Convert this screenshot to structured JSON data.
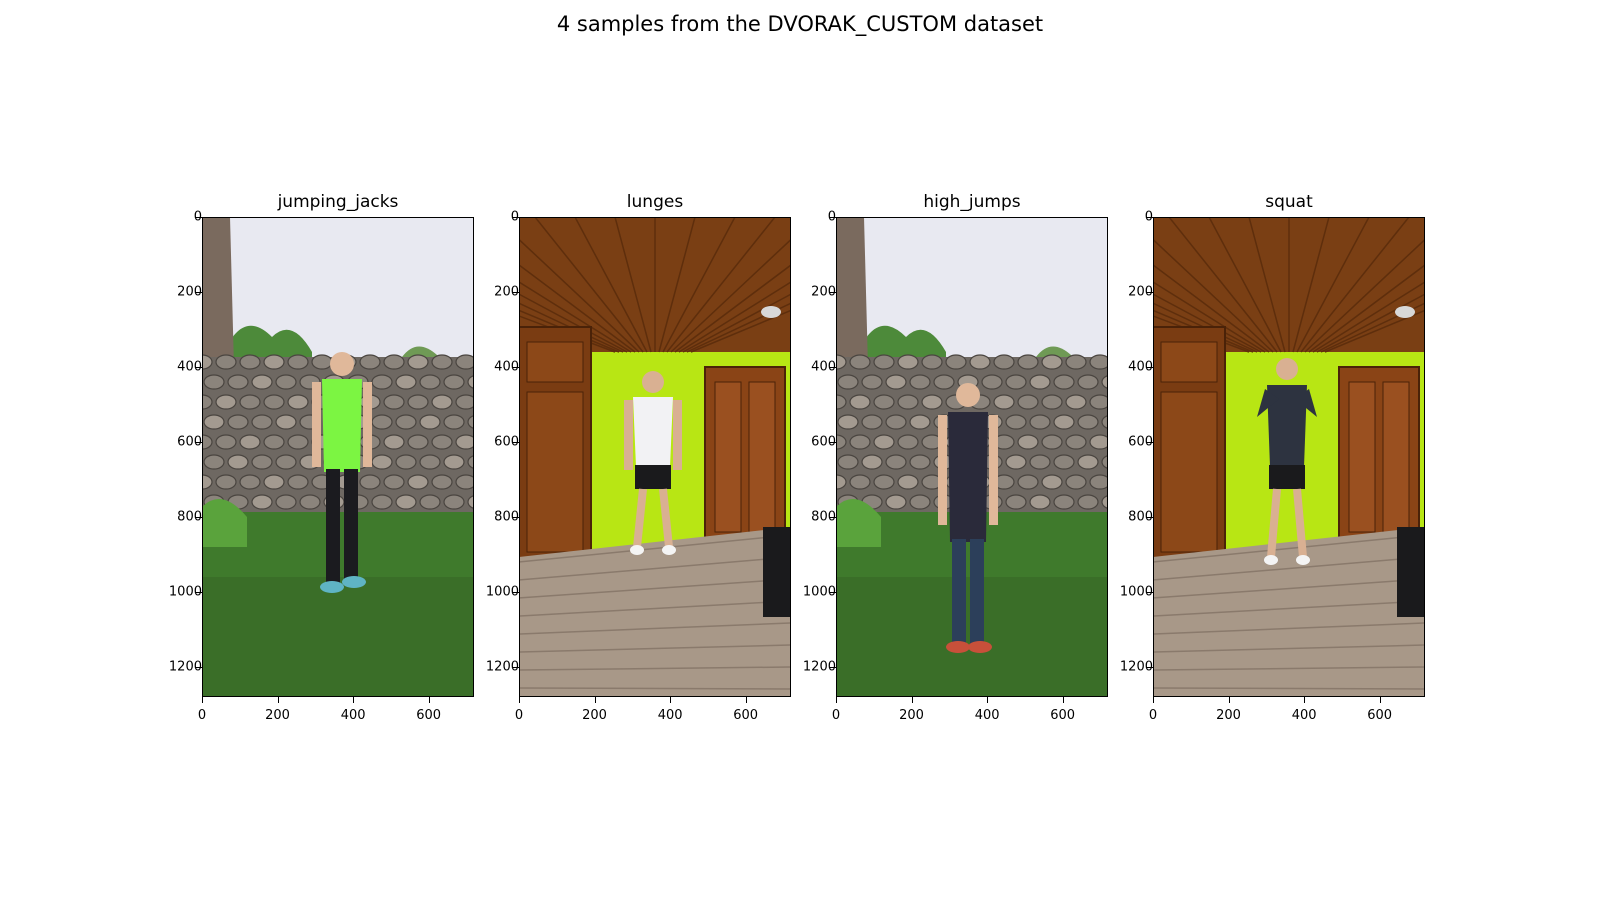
{
  "title": "4 samples from the DVORAK_CUSTOM dataset",
  "chart_data": {
    "type": "image-grid",
    "title": "4 samples from the DVORAK_CUSTOM dataset",
    "image_width": 720,
    "image_height": 1280,
    "xticks": [
      "0",
      "200",
      "400",
      "600"
    ],
    "yticks": [
      "0",
      "200",
      "400",
      "600",
      "800",
      "1000",
      "1200"
    ],
    "xtick_values": [
      0,
      200,
      400,
      600
    ],
    "ytick_values": [
      0,
      200,
      400,
      600,
      800,
      1000,
      1200
    ],
    "xlim": [
      0,
      720
    ],
    "ylim": [
      1280,
      0
    ],
    "panels": [
      {
        "label": "jumping_jacks",
        "scene": "garden"
      },
      {
        "label": "lunges",
        "scene": "room"
      },
      {
        "label": "high_jumps",
        "scene": "garden"
      },
      {
        "label": "squat",
        "scene": "room"
      }
    ]
  }
}
